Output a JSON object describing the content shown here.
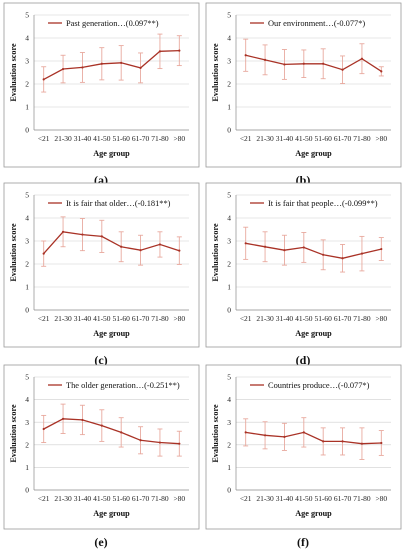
{
  "chart_data": [
    {
      "type": "line",
      "panel_label": "(a)",
      "legend": "Past generation…(0.097**)",
      "xlabel": "Age group",
      "ylabel": "Evaluation score",
      "ylim": [
        0,
        5
      ],
      "yticks": [
        "0",
        "1",
        "2",
        "3",
        "4",
        "5"
      ],
      "categories": [
        "<21",
        "21-30",
        "31-40",
        "41-50",
        "51-60",
        "61-70",
        "71-80",
        ">80"
      ],
      "series": [
        {
          "values": [
            2.2,
            2.65,
            2.72,
            2.88,
            2.92,
            2.7,
            3.42,
            3.45
          ],
          "errors": [
            0.55,
            0.6,
            0.65,
            0.7,
            0.75,
            0.65,
            0.75,
            0.65
          ]
        }
      ]
    },
    {
      "type": "line",
      "panel_label": "(b)",
      "legend": "Our environment…(-0.077*)",
      "xlabel": "Age group",
      "ylabel": "Evaluation score",
      "ylim": [
        0,
        5
      ],
      "yticks": [
        "0",
        "1",
        "2",
        "3",
        "4",
        "5"
      ],
      "categories": [
        "<21",
        "21-30",
        "31-40",
        "41-50",
        "51-60",
        "61-70",
        "71-80",
        ">80"
      ],
      "series": [
        {
          "values": [
            3.25,
            3.05,
            2.85,
            2.88,
            2.88,
            2.62,
            3.1,
            2.55
          ],
          "errors": [
            0.7,
            0.65,
            0.65,
            0.6,
            0.65,
            0.6,
            0.65,
            0.2
          ]
        }
      ]
    },
    {
      "type": "line",
      "panel_label": "(c)",
      "legend": "It is fair that older…(-0.181**)",
      "xlabel": "Age group",
      "ylabel": "Evaluation score",
      "ylim": [
        0,
        5
      ],
      "yticks": [
        "0",
        "1",
        "2",
        "3",
        "4",
        "5"
      ],
      "categories": [
        "<21",
        "21-30",
        "31-40",
        "41-50",
        "51-60",
        "61-70",
        "71-80",
        ">80"
      ],
      "series": [
        {
          "values": [
            2.45,
            3.4,
            3.28,
            3.2,
            2.75,
            2.6,
            2.85,
            2.58
          ],
          "errors": [
            0.55,
            0.65,
            0.7,
            0.7,
            0.65,
            0.65,
            0.55,
            0.6
          ]
        }
      ]
    },
    {
      "type": "line",
      "panel_label": "(d)",
      "legend": "It is fair that people…(-0.099**)",
      "xlabel": "Age group",
      "ylabel": "Evaluation score",
      "ylim": [
        0,
        5
      ],
      "yticks": [
        "0",
        "1",
        "2",
        "3",
        "4",
        "5"
      ],
      "categories": [
        "<21",
        "21-30",
        "31-40",
        "41-50",
        "51-60",
        "61-70",
        "71-80",
        ">80"
      ],
      "series": [
        {
          "values": [
            2.9,
            2.75,
            2.6,
            2.72,
            2.4,
            2.25,
            2.45,
            2.65
          ],
          "errors": [
            0.7,
            0.65,
            0.65,
            0.65,
            0.65,
            0.6,
            0.75,
            0.5
          ]
        }
      ]
    },
    {
      "type": "line",
      "panel_label": "(e)",
      "legend": "The older generation…(-0.251**)",
      "xlabel": "Age group",
      "ylabel": "Evaluation score",
      "ylim": [
        0,
        5
      ],
      "yticks": [
        "0",
        "1",
        "2",
        "3",
        "4",
        "5"
      ],
      "categories": [
        "<21",
        "21-30",
        "31-40",
        "41-50",
        "51-60",
        "61-70",
        "71-80",
        ">80"
      ],
      "series": [
        {
          "values": [
            2.7,
            3.15,
            3.1,
            2.85,
            2.55,
            2.2,
            2.1,
            2.05
          ],
          "errors": [
            0.6,
            0.65,
            0.65,
            0.7,
            0.65,
            0.6,
            0.6,
            0.55
          ]
        }
      ]
    },
    {
      "type": "line",
      "panel_label": "(f)",
      "legend": "Countries produce…(-0.077*)",
      "xlabel": "Age group",
      "ylabel": "Evaluation score",
      "ylim": [
        0,
        5
      ],
      "yticks": [
        "0",
        "1",
        "2",
        "3",
        "4",
        "5"
      ],
      "categories": [
        "<21",
        "21-30",
        "31-40",
        "41-50",
        "51-60",
        "61-70",
        "71-80",
        ">80"
      ],
      "series": [
        {
          "values": [
            2.55,
            2.42,
            2.35,
            2.55,
            2.15,
            2.15,
            2.05,
            2.08
          ],
          "errors": [
            0.6,
            0.6,
            0.6,
            0.65,
            0.6,
            0.6,
            0.7,
            0.55
          ]
        }
      ]
    }
  ]
}
